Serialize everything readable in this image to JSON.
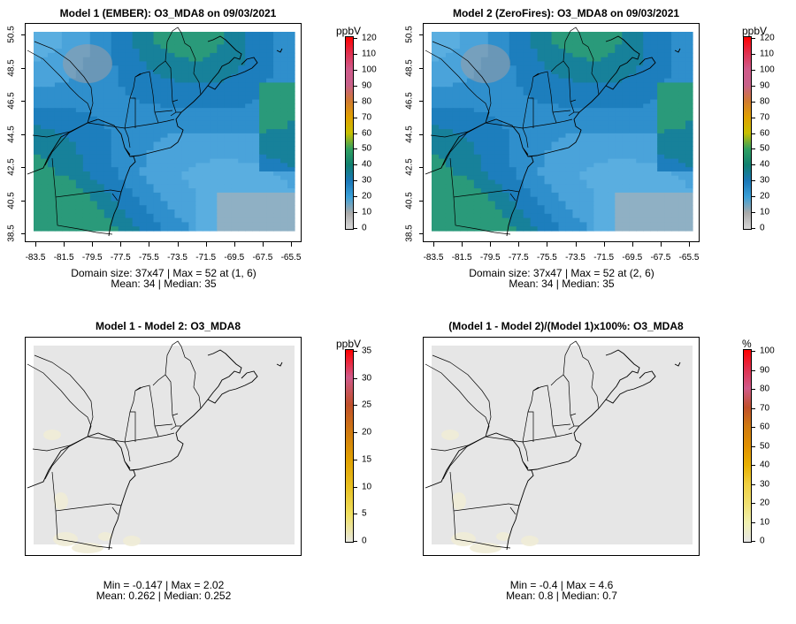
{
  "panels": [
    {
      "id": "p1",
      "title": "Model 1 (EMBER): O3_MDA8 on 09/03/2021",
      "unit": "ppbV",
      "stats_line1": "Domain size: 37x47 | Max = 52 at (1, 6)",
      "stats_line2": "Mean: 34 |  Median: 35",
      "field": "concentration",
      "colorbar": {
        "ticks": [
          "120",
          "110",
          "100",
          "90",
          "80",
          "70",
          "60",
          "50",
          "40",
          "30",
          "20",
          "10",
          "0"
        ],
        "colors": [
          "#ff0000",
          "#e0304f",
          "#d05a8a",
          "#c8608a",
          "#d07a30",
          "#e0a000",
          "#c8c000",
          "#30a060",
          "#108070",
          "#1a78b8",
          "#3aa0d8",
          "#aaaaaa",
          "#d8d8d8"
        ]
      },
      "show_axes": true
    },
    {
      "id": "p2",
      "title": "Model 2 (ZeroFires): O3_MDA8 on 09/03/2021",
      "unit": "ppbV",
      "stats_line1": "Domain size: 37x47 | Max = 52 at (2, 6)",
      "stats_line2": "Mean: 34 |  Median: 35",
      "field": "concentration",
      "colorbar": {
        "ticks": [
          "120",
          "110",
          "100",
          "90",
          "80",
          "70",
          "60",
          "50",
          "40",
          "30",
          "20",
          "10",
          "0"
        ],
        "colors": [
          "#ff0000",
          "#e0304f",
          "#d05a8a",
          "#c8608a",
          "#d07a30",
          "#e0a000",
          "#c8c000",
          "#30a060",
          "#108070",
          "#1a78b8",
          "#3aa0d8",
          "#aaaaaa",
          "#d8d8d8"
        ]
      },
      "show_axes": true
    },
    {
      "id": "p3",
      "title": "Model 1 - Model 2: O3_MDA8",
      "unit": "ppbV",
      "stats_line1": "Min = -0.147 | Max = 2.02",
      "stats_line2": "Mean: 0.262 |  Median: 0.252",
      "field": "difference",
      "colorbar": {
        "ticks": [
          "35",
          "30",
          "25",
          "20",
          "15",
          "10",
          "5",
          "0"
        ],
        "colors": [
          "#ff0000",
          "#d05a8a",
          "#c0502a",
          "#d07a10",
          "#e0a000",
          "#e8c020",
          "#f0e060",
          "#e8e8e0"
        ]
      },
      "show_axes": false
    },
    {
      "id": "p4",
      "title": "(Model 1 - Model 2)/(Model 1)x100%: O3_MDA8",
      "unit": "%",
      "stats_line1": "Min = -0.4 | Max = 4.6",
      "stats_line2": "Mean: 0.8 |  Median: 0.7",
      "field": "difference",
      "colorbar": {
        "ticks": [
          "100",
          "90",
          "80",
          "70",
          "60",
          "50",
          "40",
          "30",
          "20",
          "10",
          "0"
        ],
        "colors": [
          "#ff0000",
          "#e0304f",
          "#d05a8a",
          "#c0502a",
          "#d07a10",
          "#e09000",
          "#e8b000",
          "#f0d040",
          "#f0e070",
          "#f0f0b0",
          "#e6e6e6"
        ]
      },
      "show_axes": false
    }
  ],
  "axes": {
    "x_ticks": [
      "-83.5",
      "-81.5",
      "-79.5",
      "-77.5",
      "-75.5",
      "-73.5",
      "-71.5",
      "-69.5",
      "-67.5",
      "-65.5"
    ],
    "y_ticks": [
      "38.5",
      "40.5",
      "42.5",
      "44.5",
      "46.5",
      "48.5",
      "50.5"
    ]
  }
}
